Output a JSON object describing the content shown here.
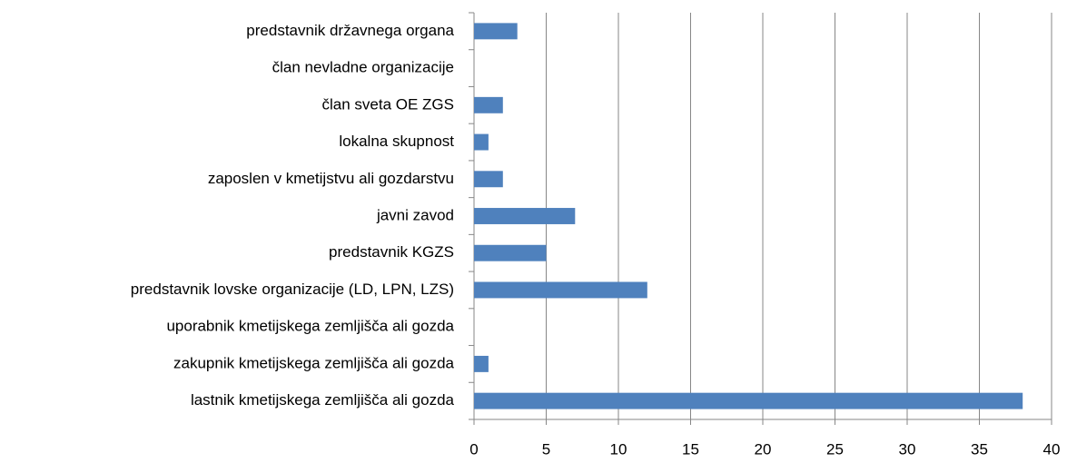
{
  "chart_data": {
    "type": "bar",
    "orientation": "horizontal",
    "categories": [
      "predstavnik državnega organa",
      "član nevladne organizacije",
      "član sveta OE ZGS",
      "lokalna skupnost",
      "zaposlen v kmetijstvu ali gozdarstvu",
      "javni zavod",
      "predstavnik KGZS",
      "predstavnik lovske organizacije (LD, LPN, LZS)",
      "uporabnik kmetijskega zemljišča ali gozda",
      "zakupnik kmetijskega zemljišča ali gozda",
      "lastnik kmetijskega zemljišča ali gozda"
    ],
    "values": [
      3,
      0,
      2,
      1,
      2,
      7,
      5,
      12,
      0,
      1,
      38
    ],
    "color": "#4f81bd",
    "xlim": [
      0,
      40
    ],
    "xticks": [
      0,
      5,
      10,
      15,
      20,
      25,
      30,
      35,
      40
    ],
    "grid": true
  }
}
